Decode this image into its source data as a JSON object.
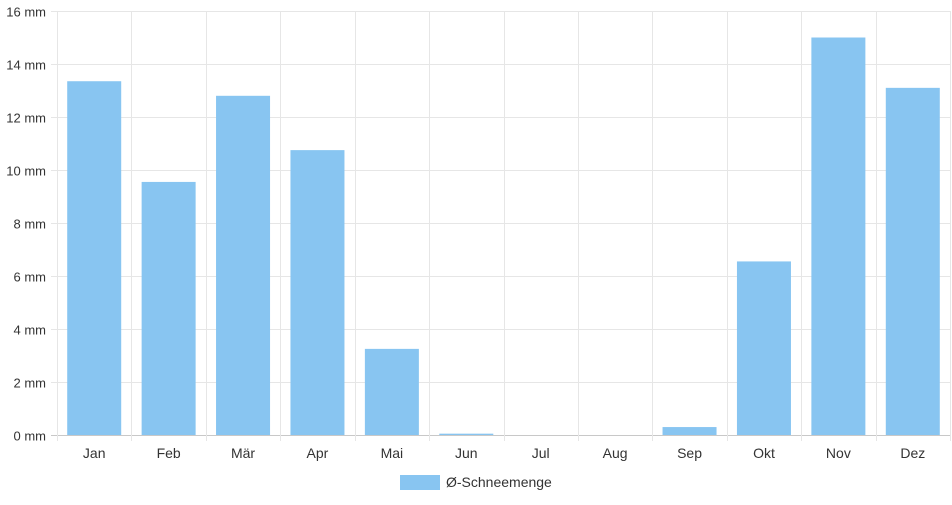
{
  "chart_data": {
    "type": "bar",
    "categories": [
      "Jan",
      "Feb",
      "Mär",
      "Apr",
      "Mai",
      "Jun",
      "Jul",
      "Aug",
      "Sep",
      "Okt",
      "Nov",
      "Dez"
    ],
    "series": [
      {
        "name": "Ø-Schneemenge",
        "values": [
          13.35,
          9.55,
          12.8,
          10.75,
          3.25,
          0.05,
          0,
          0,
          0.3,
          6.55,
          15.0,
          13.1
        ],
        "color": "#88c5f1"
      }
    ],
    "y_ticks": [
      "0 mm",
      "2 mm",
      "4 mm",
      "6 mm",
      "8 mm",
      "10 mm",
      "12 mm",
      "14 mm",
      "16 mm"
    ],
    "ylim": [
      0,
      16
    ],
    "grid": true,
    "legend_position": "bottom"
  }
}
